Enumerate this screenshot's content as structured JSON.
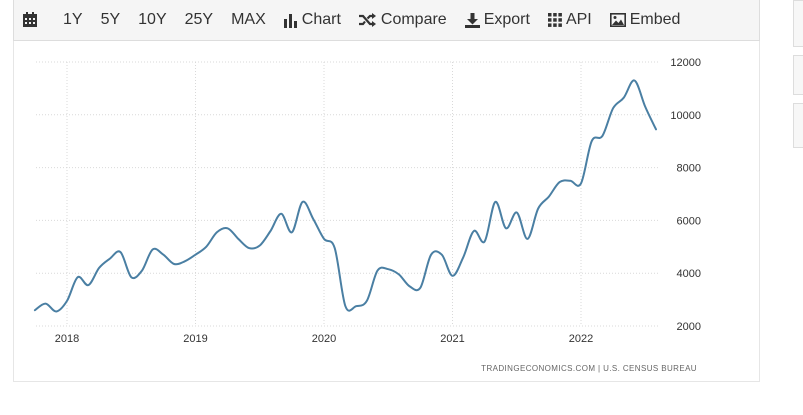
{
  "toolbar": {
    "items": [
      {
        "label": "1Y"
      },
      {
        "label": "5Y"
      },
      {
        "label": "10Y"
      },
      {
        "label": "25Y"
      },
      {
        "label": "MAX"
      },
      {
        "label": "Chart",
        "icon": "bar-chart-icon"
      },
      {
        "label": "Compare",
        "icon": "shuffle-icon"
      },
      {
        "label": "Export",
        "icon": "download-icon"
      },
      {
        "label": "API",
        "icon": "grid-icon"
      },
      {
        "label": "Embed",
        "icon": "image-icon"
      }
    ],
    "calendar_icon": "calendar-icon"
  },
  "chart_data": {
    "type": "line",
    "title": "",
    "xlabel": "",
    "ylabel": "",
    "x_ticks": [
      "2018",
      "2019",
      "2020",
      "2021",
      "2022"
    ],
    "y_ticks": [
      2000,
      4000,
      6000,
      8000,
      10000,
      12000
    ],
    "ylim": [
      2000,
      12000
    ],
    "xlim": [
      "2017-10",
      "2022-10"
    ],
    "grid": true,
    "line_color": "#4a7fa3",
    "series": [
      {
        "x": [
          "2017-10",
          "2017-11",
          "2017-12",
          "2018-01",
          "2018-02",
          "2018-03",
          "2018-04",
          "2018-05",
          "2018-06",
          "2018-07",
          "2018-08",
          "2018-09",
          "2018-10",
          "2018-11",
          "2018-12",
          "2019-01",
          "2019-02",
          "2019-03",
          "2019-04",
          "2019-05",
          "2019-06",
          "2019-07",
          "2019-08",
          "2019-09",
          "2019-10",
          "2019-11",
          "2019-12",
          "2020-01",
          "2020-02",
          "2020-03",
          "2020-04",
          "2020-05",
          "2020-06",
          "2020-07",
          "2020-08",
          "2020-09",
          "2020-10",
          "2020-11",
          "2020-12",
          "2021-01",
          "2021-02",
          "2021-03",
          "2021-04",
          "2021-05",
          "2021-06",
          "2021-07",
          "2021-08",
          "2021-09",
          "2021-10",
          "2021-11",
          "2021-12",
          "2022-01",
          "2022-02",
          "2022-03",
          "2022-04",
          "2022-05",
          "2022-06",
          "2022-07",
          "2022-08",
          "2022-09"
        ],
        "values": [
          2600,
          2850,
          2550,
          2950,
          3850,
          3550,
          4200,
          4550,
          4800,
          3850,
          4100,
          4900,
          4700,
          4350,
          4450,
          4700,
          5000,
          5550,
          5700,
          5300,
          4950,
          5050,
          5600,
          6250,
          5550,
          6700,
          6050,
          5300,
          4950,
          2750,
          2750,
          2950,
          4100,
          4150,
          3950,
          3500,
          3450,
          4700,
          4700,
          3900,
          4600,
          5600,
          5200,
          6700,
          5700,
          6300,
          5300,
          6450,
          6900,
          7450,
          7500,
          7400,
          9000,
          9200,
          10250,
          10650,
          11300,
          10300,
          9450,
          null
        ]
      }
    ],
    "credit": "TRADINGECONOMICS.COM  |  U.S. CENSUS BUREAU"
  }
}
